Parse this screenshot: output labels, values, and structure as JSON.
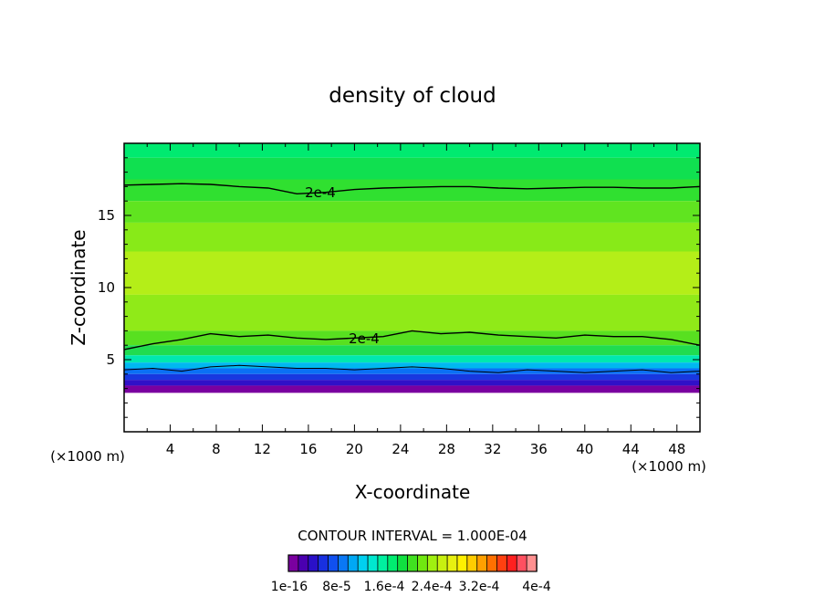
{
  "chart_data": {
    "type": "heatmap",
    "title": "density of cloud",
    "xlabel": "X-coordinate",
    "ylabel": "Z-coordinate",
    "x_unit_label": "(×1000 m)",
    "z_unit_label": "(×1000 m)",
    "xlim": [
      0,
      50
    ],
    "ylim": [
      0,
      20
    ],
    "x_ticks": [
      4,
      8,
      12,
      16,
      20,
      24,
      28,
      32,
      36,
      40,
      44,
      48
    ],
    "y_ticks": [
      5,
      10,
      15
    ],
    "contour_interval_text": "CONTOUR INTERVAL = 1.000E-04",
    "contour_labels": [
      "2e-4",
      "2e-4"
    ],
    "colorbar_labels": [
      "1e-16",
      "8e-5",
      "1.6e-4",
      "2.4e-4",
      "3.2e-4",
      "4e-4"
    ],
    "colorbar_colors": [
      "#7a00a0",
      "#4a00b0",
      "#2a10c8",
      "#1830e0",
      "#1050f0",
      "#0a78f5",
      "#00a8f5",
      "#00d0f0",
      "#00e8d0",
      "#00f0a0",
      "#00ec70",
      "#10e040",
      "#40e020",
      "#70e810",
      "#a0f010",
      "#c8f010",
      "#e8f010",
      "#fff000",
      "#ffcc00",
      "#ffa000",
      "#ff7000",
      "#ff4010",
      "#ff2020",
      "#ff5060",
      "#ff9090"
    ],
    "layers_by_height": [
      {
        "z_bottom": 19,
        "z_top": 20,
        "color": "#00ea70"
      },
      {
        "z_bottom": 17.5,
        "z_top": 19,
        "color": "#10e050"
      },
      {
        "z_bottom": 16,
        "z_top": 17.5,
        "color": "#30e030"
      },
      {
        "z_bottom": 14.5,
        "z_top": 16,
        "color": "#60e420"
      },
      {
        "z_bottom": 12.5,
        "z_top": 14.5,
        "color": "#88ea18"
      },
      {
        "z_bottom": 9.5,
        "z_top": 12.5,
        "color": "#b4ee18"
      },
      {
        "z_bottom": 7,
        "z_top": 9.5,
        "color": "#90ea18"
      },
      {
        "z_bottom": 6,
        "z_top": 7,
        "color": "#58e020"
      },
      {
        "z_bottom": 5.3,
        "z_top": 6,
        "color": "#20dc50"
      },
      {
        "z_bottom": 4.8,
        "z_top": 5.3,
        "color": "#00e8b0"
      },
      {
        "z_bottom": 4.4,
        "z_top": 4.8,
        "color": "#00b8f0"
      },
      {
        "z_bottom": 4.0,
        "z_top": 4.4,
        "color": "#0a70f5"
      },
      {
        "z_bottom": 3.6,
        "z_top": 4.0,
        "color": "#1838e0"
      },
      {
        "z_bottom": 3.2,
        "z_top": 3.6,
        "color": "#3010c8"
      },
      {
        "z_bottom": 2.7,
        "z_top": 3.2,
        "color": "#7a00a0"
      }
    ],
    "contour_upper_z": [
      17.1,
      17.15,
      17.2,
      17.15,
      17.0,
      16.9,
      16.5,
      16.6,
      16.8,
      16.9,
      16.95,
      17.0,
      17.0,
      16.9,
      16.85,
      16.9,
      16.95,
      16.95,
      16.9,
      16.9,
      17.0
    ],
    "contour_lower_z": [
      5.7,
      6.1,
      6.4,
      6.8,
      6.6,
      6.7,
      6.5,
      6.4,
      6.5,
      6.6,
      7.0,
      6.8,
      6.9,
      6.7,
      6.6,
      6.5,
      6.7,
      6.6,
      6.6,
      6.4,
      6.0
    ],
    "contour_base_z": [
      4.3,
      4.4,
      4.2,
      4.5,
      4.6,
      4.5,
      4.4,
      4.4,
      4.3,
      4.4,
      4.5,
      4.4,
      4.2,
      4.1,
      4.3,
      4.2,
      4.1,
      4.2,
      4.3,
      4.1,
      4.2
    ],
    "contour_x": [
      0,
      2.5,
      5,
      7.5,
      10,
      12.5,
      15,
      17.5,
      20,
      22.5,
      25,
      27.5,
      30,
      32.5,
      35,
      37.5,
      40,
      42.5,
      45,
      47.5,
      50
    ]
  }
}
